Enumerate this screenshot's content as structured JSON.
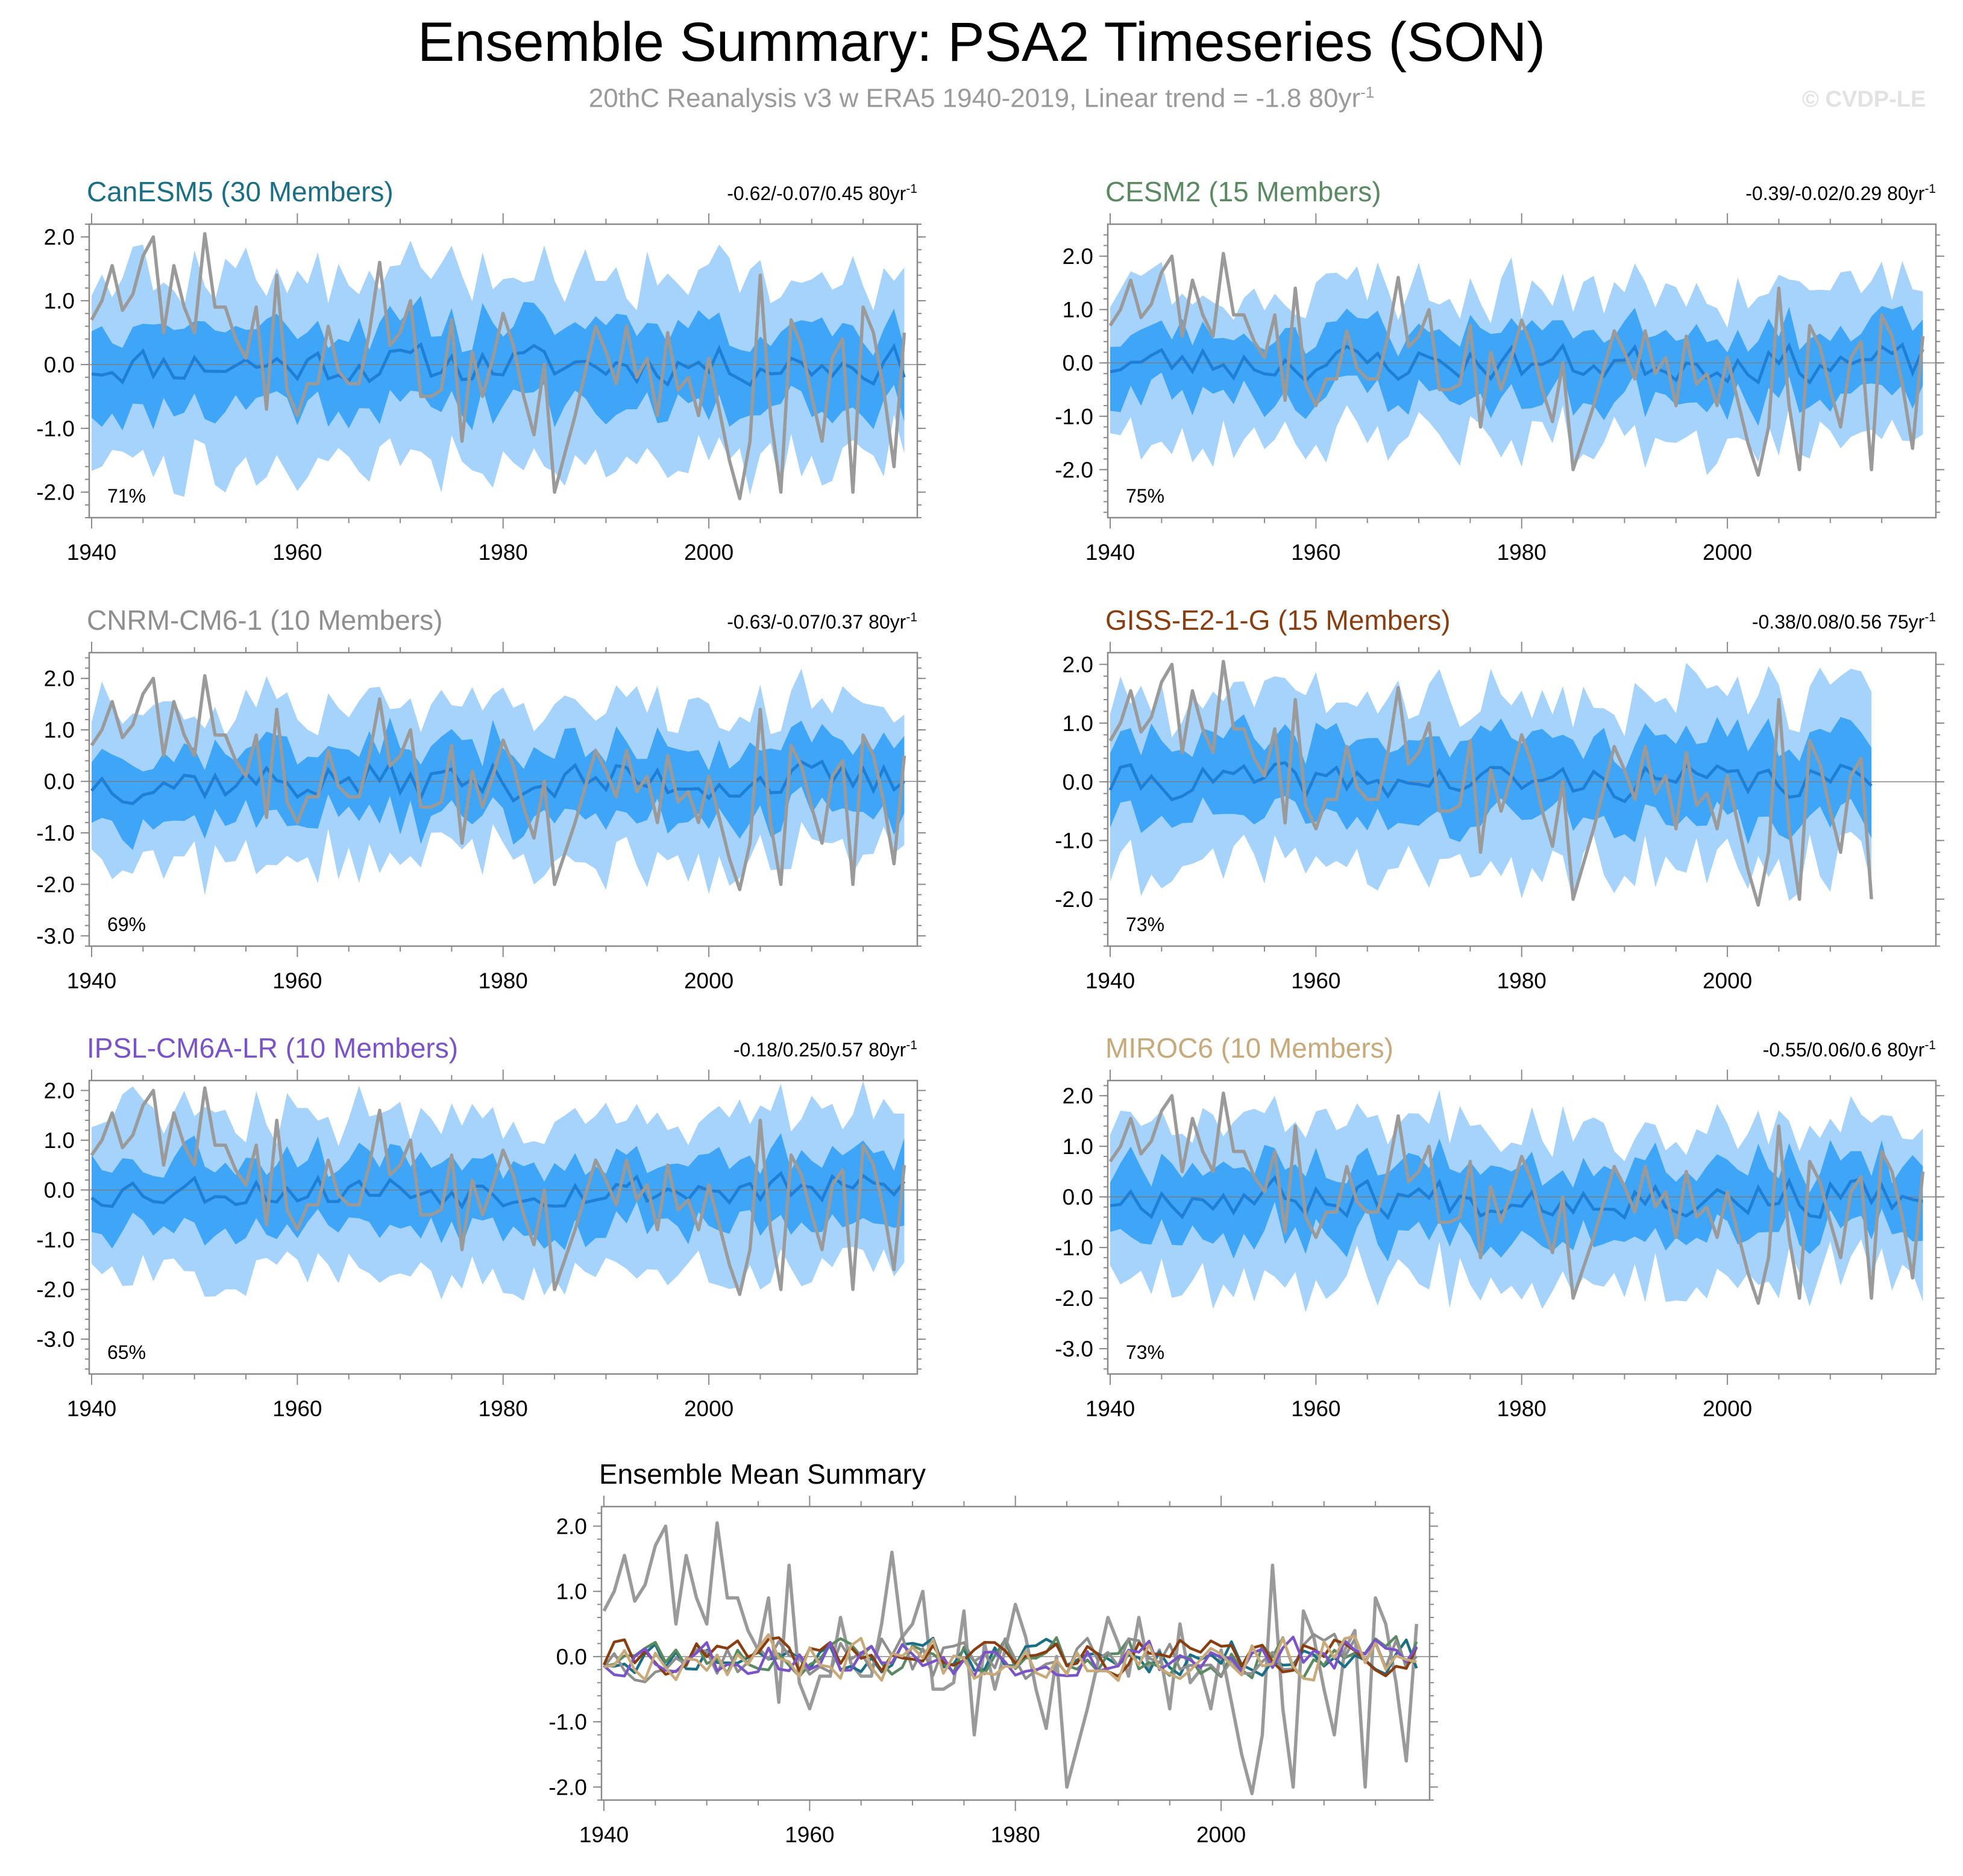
{
  "page": {
    "title": "Ensemble Summary: PSA2 Timeseries (SON)",
    "subtitle_main": "20thC Reanalysis v3 w ERA5 1940-2019, Linear trend = -1.8 80yr",
    "subtitle_sup": "-1",
    "watermark": "© CVDP-LE"
  },
  "colors": {
    "band_outer": "#a6d3fb",
    "band_inner": "#3fa5f7",
    "ens_mean": "#1f7fd6",
    "obs": "#9a9a9a",
    "zero_line": "#7d7d7d"
  },
  "chart_data": [
    {
      "type": "area",
      "title": "CanESM5 (30 Members)",
      "title_color": "#1a6f86",
      "trend_text": "-0.62/-0.07/0.45 80yr",
      "trend_sup": "-1",
      "percent_label": "71%",
      "x_start": 1940,
      "x_end": 2019,
      "xticks": [
        1940,
        1960,
        1980,
        2000
      ],
      "ylim": [
        -2.4,
        2.2
      ],
      "yticks": [
        2.0,
        1.0,
        0.0,
        -1.0,
        -2.0
      ],
      "ytick_labels": [
        "2.0",
        "1.0",
        "0.0",
        "-1.0",
        "-2.0"
      ],
      "outer_width": 1.35,
      "inner_width": 0.6,
      "mean_scale": 0.22,
      "seed": 11
    },
    {
      "type": "area",
      "title": "CESM2 (15 Members)",
      "title_color": "#5a8a62",
      "trend_text": "-0.39/-0.02/0.29 80yr",
      "trend_sup": "-1",
      "percent_label": "75%",
      "x_start": 1940,
      "x_end": 2019,
      "xticks": [
        1940,
        1960,
        1980,
        2000
      ],
      "ylim": [
        -2.9,
        2.6
      ],
      "yticks": [
        2.0,
        1.0,
        0.0,
        -1.0,
        -2.0
      ],
      "ytick_labels": [
        "2.0",
        "1.0",
        "0.0",
        "-1.0",
        "-2.0"
      ],
      "outer_width": 1.3,
      "inner_width": 0.6,
      "mean_scale": 0.25,
      "seed": 23
    },
    {
      "type": "area",
      "title": "CNRM-CM6-1 (10 Members)",
      "title_color": "#8f8f8f",
      "trend_text": "-0.63/-0.07/0.37 80yr",
      "trend_sup": "-1",
      "percent_label": "69%",
      "x_start": 1940,
      "x_end": 2019,
      "xticks": [
        1940,
        1960,
        1980,
        2000
      ],
      "ylim": [
        -3.2,
        2.5
      ],
      "yticks": [
        2.0,
        1.0,
        0.0,
        -1.0,
        -2.0,
        -3.0
      ],
      "ytick_labels": [
        "2.0",
        "1.0",
        "0.0",
        "-1.0",
        "-2.0",
        "-3.0"
      ],
      "outer_width": 1.4,
      "inner_width": 0.65,
      "mean_scale": 0.28,
      "seed": 37
    },
    {
      "type": "area",
      "title": "GISS-E2-1-G (15 Members)",
      "title_color": "#8a3e10",
      "trend_text": "-0.38/0.08/0.56 75yr",
      "trend_sup": "-1",
      "percent_label": "73%",
      "x_start": 1940,
      "x_end": 2014,
      "xticks": [
        1940,
        1960,
        1980,
        2000
      ],
      "ylim": [
        -2.8,
        2.2
      ],
      "yticks": [
        2.0,
        1.0,
        0.0,
        -1.0,
        -2.0
      ],
      "ytick_labels": [
        "2.0",
        "1.0",
        "0.0",
        "-1.0",
        "-2.0"
      ],
      "outer_width": 1.35,
      "inner_width": 0.65,
      "mean_scale": 0.22,
      "seed": 41
    },
    {
      "type": "area",
      "title": "IPSL-CM6A-LR (10 Members)",
      "title_color": "#7b53c8",
      "trend_text": "-0.18/0.25/0.57 80yr",
      "trend_sup": "-1",
      "percent_label": "65%",
      "x_start": 1940,
      "x_end": 2019,
      "xticks": [
        1940,
        1960,
        1980,
        2000
      ],
      "ylim": [
        -3.7,
        2.2
      ],
      "yticks": [
        2.0,
        1.0,
        0.0,
        -1.0,
        -2.0,
        -3.0
      ],
      "ytick_labels": [
        "2.0",
        "1.0",
        "0.0",
        "-1.0",
        "-2.0",
        "-3.0"
      ],
      "outer_width": 1.45,
      "inner_width": 0.65,
      "mean_scale": 0.25,
      "seed": 53
    },
    {
      "type": "area",
      "title": "MIROC6 (10 Members)",
      "title_color": "#c8a97a",
      "trend_text": "-0.55/0.06/0.6 80yr",
      "trend_sup": "-1",
      "percent_label": "73%",
      "x_start": 1940,
      "x_end": 2019,
      "xticks": [
        1940,
        1960,
        1980,
        2000
      ],
      "ylim": [
        -3.5,
        2.3
      ],
      "yticks": [
        2.0,
        1.0,
        0.0,
        -1.0,
        -2.0,
        -3.0
      ],
      "ytick_labels": [
        "2.0",
        "1.0",
        "0.0",
        "-1.0",
        "-2.0",
        "-3.0"
      ],
      "outer_width": 1.4,
      "inner_width": 0.65,
      "mean_scale": 0.28,
      "seed": 67
    },
    {
      "type": "line",
      "title": "Ensemble Mean Summary",
      "title_color": "#000000",
      "x_start": 1940,
      "x_end": 2019,
      "xticks": [
        1940,
        1960,
        1980,
        2000
      ],
      "ylim": [
        -2.2,
        2.3
      ],
      "yticks": [
        2.0,
        1.0,
        0.0,
        -1.0,
        -2.0
      ],
      "ytick_labels": [
        "2.0",
        "1.0",
        "0.0",
        "-1.0",
        "-2.0"
      ],
      "series": [
        {
          "name": "CanESM5",
          "color": "#1a6f86",
          "seed": 11
        },
        {
          "name": "CESM2",
          "color": "#5a8a62",
          "seed": 23
        },
        {
          "name": "CNRM-CM6-1",
          "color": "#8f8f8f",
          "seed": 37
        },
        {
          "name": "GISS-E2-1-G",
          "color": "#8a3e10",
          "seed": 41
        },
        {
          "name": "IPSL-CM6A-LR",
          "color": "#7b53c8",
          "seed": 53
        },
        {
          "name": "MIROC6",
          "color": "#c8a97a",
          "seed": 67
        }
      ]
    }
  ],
  "observations": {
    "name": "20thC Reanalysis v3 w ERA5",
    "x_start": 1940,
    "values": [
      0.7,
      1.0,
      1.55,
      0.85,
      1.1,
      1.7,
      2.0,
      0.5,
      1.55,
      0.9,
      0.5,
      2.05,
      0.9,
      0.9,
      0.4,
      0.1,
      0.9,
      -0.7,
      1.4,
      -0.4,
      -0.8,
      -0.3,
      -0.3,
      0.6,
      -0.1,
      -0.3,
      -0.3,
      0.5,
      1.6,
      0.3,
      0.5,
      1.0,
      -0.5,
      -0.5,
      -0.4,
      0.7,
      -1.2,
      0.2,
      -0.5,
      0.1,
      0.8,
      0.3,
      -0.5,
      -1.1,
      0.0,
      -2.0,
      -1.4,
      -0.8,
      -0.1,
      0.6,
      0.2,
      -0.3,
      0.6,
      -0.2,
      0.1,
      -0.8,
      0.5,
      -0.4,
      -0.2,
      -0.8,
      0.1,
      -0.7,
      -1.5,
      -2.1,
      -1.2,
      1.4,
      -0.8,
      -2.0,
      0.7,
      0.3,
      -0.5,
      -1.2,
      0.1,
      0.4,
      -2.0,
      0.9,
      0.5,
      -0.4,
      -1.6,
      0.5
    ]
  }
}
